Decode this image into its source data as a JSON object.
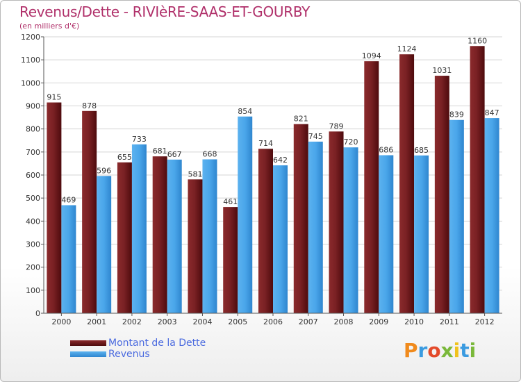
{
  "page": {
    "title": "Revenus/Dette - RIVIèRE-SAAS-ET-GOURBY",
    "subtitle": "(en milliers d'€)",
    "brand": "Proxiti"
  },
  "colors": {
    "title": "#b0306a",
    "dette": "#6b1618",
    "revenus": "#3d99e0",
    "legend_text": "#4a6adf"
  },
  "chart_data": {
    "type": "bar",
    "title": "Revenus/Dette - RIVIèRE-SAAS-ET-GOURBY",
    "subtitle": "(en milliers d'€)",
    "categories": [
      "2000",
      "2001",
      "2002",
      "2003",
      "2004",
      "2005",
      "2006",
      "2007",
      "2008",
      "2009",
      "2010",
      "2011",
      "2012"
    ],
    "series": [
      {
        "name": "Montant de la Dette",
        "values": [
          915,
          878,
          655,
          681,
          581,
          461,
          714,
          821,
          789,
          1094,
          1124,
          1031,
          1160
        ]
      },
      {
        "name": "Revenus",
        "values": [
          469,
          596,
          733,
          667,
          668,
          854,
          642,
          745,
          720,
          686,
          685,
          839,
          847
        ]
      }
    ],
    "ylim": [
      0,
      1200
    ],
    "yticks": [
      0,
      100,
      200,
      300,
      400,
      500,
      600,
      700,
      800,
      900,
      1000,
      1100,
      1200
    ],
    "grid": true,
    "legend_position": "bottom-left"
  }
}
